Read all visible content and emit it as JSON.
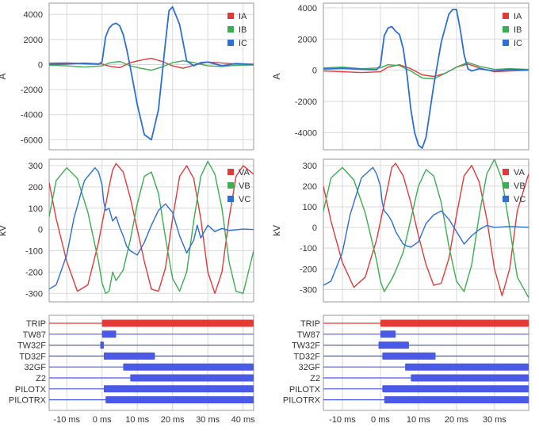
{
  "colors": {
    "IA": "#e03b3b",
    "IB": "#3cae52",
    "IC": "#2d6fd4",
    "VA": "#e03b3b",
    "VB": "#3cae52",
    "VC": "#2d6fd4",
    "trip": "#e53935",
    "bits": "#4a5ae6",
    "frame": "#9a9a9a",
    "grid": "#d9d9d9"
  },
  "chart_data": [
    {
      "type": "line",
      "panel": "left-current",
      "ylabel": "A",
      "ylim": [
        -6800,
        4900
      ],
      "yticks": [
        4000,
        2000,
        0,
        -2000,
        -4000,
        -6000
      ],
      "xlim": [
        -15,
        43
      ],
      "legend": "top-right",
      "series": [
        {
          "name": "IA",
          "x": [
            -15,
            -10,
            -5,
            0,
            2,
            5,
            8,
            11,
            14,
            17,
            20,
            23,
            26,
            30,
            34,
            38,
            43
          ],
          "y": [
            0,
            30,
            120,
            50,
            -120,
            -250,
            150,
            350,
            500,
            250,
            -100,
            -300,
            -50,
            200,
            120,
            50,
            30
          ]
        },
        {
          "name": "IB",
          "x": [
            -15,
            -10,
            -5,
            0,
            2,
            5,
            8,
            11,
            14,
            17,
            20,
            23,
            26,
            30,
            34,
            38,
            43
          ],
          "y": [
            -50,
            -100,
            -200,
            -100,
            120,
            250,
            -100,
            -300,
            -450,
            -200,
            150,
            300,
            150,
            -100,
            -150,
            -60,
            -30
          ]
        },
        {
          "name": "IC",
          "x": [
            -15,
            -10,
            -5,
            -1,
            0,
            1,
            2,
            3,
            4,
            5,
            6,
            7,
            8,
            10,
            12,
            14,
            16,
            18,
            19,
            20,
            22,
            24,
            26,
            28,
            30,
            34,
            38,
            43
          ],
          "y": [
            100,
            120,
            70,
            30,
            200,
            2200,
            2900,
            3200,
            3300,
            3100,
            2400,
            1200,
            -200,
            -3200,
            -5600,
            -6000,
            -3600,
            1800,
            4300,
            4600,
            3200,
            300,
            -100,
            150,
            200,
            -100,
            80,
            0
          ]
        }
      ]
    },
    {
      "type": "line",
      "panel": "left-voltage",
      "ylabel": "kV",
      "ylim": [
        -340,
        330
      ],
      "yticks": [
        300,
        200,
        100,
        0,
        -100,
        -200,
        -300
      ],
      "xlim": [
        -15,
        43
      ],
      "legend": "top-right",
      "series": [
        {
          "name": "VA",
          "x": [
            -15,
            -13,
            -10,
            -7,
            -4,
            -1,
            2,
            3,
            4,
            6,
            8,
            10,
            12,
            14,
            16,
            18,
            20,
            22,
            24,
            26,
            28,
            30,
            32,
            34,
            36,
            38,
            40,
            43
          ],
          "y": [
            220,
            50,
            -150,
            -290,
            -260,
            -60,
            200,
            280,
            310,
            270,
            150,
            0,
            -150,
            -280,
            -290,
            -180,
            50,
            250,
            300,
            240,
            50,
            -200,
            -300,
            -200,
            50,
            250,
            300,
            260
          ]
        },
        {
          "name": "VB",
          "x": [
            -15,
            -13,
            -10,
            -7,
            -4,
            -1,
            0,
            1,
            2,
            3,
            4,
            6,
            8,
            10,
            12,
            14,
            16,
            18,
            20,
            22,
            24,
            26,
            28,
            30,
            32,
            34,
            36,
            38,
            40,
            43
          ],
          "y": [
            60,
            230,
            290,
            240,
            80,
            -150,
            -250,
            -300,
            -290,
            -200,
            -240,
            -190,
            -50,
            120,
            250,
            270,
            170,
            -40,
            -230,
            -290,
            -200,
            40,
            250,
            320,
            260,
            100,
            -150,
            -290,
            -300,
            -100
          ]
        },
        {
          "name": "VC",
          "x": [
            -15,
            -13,
            -10,
            -8,
            -5,
            -2,
            -1,
            0,
            0.5,
            1,
            2,
            3,
            4,
            5,
            6,
            7,
            8,
            10,
            12,
            14,
            16,
            18,
            20,
            22,
            24,
            26,
            27,
            28,
            30,
            32,
            34,
            36,
            40,
            43
          ],
          "y": [
            -280,
            -260,
            -120,
            50,
            230,
            290,
            270,
            210,
            130,
            90,
            100,
            40,
            60,
            10,
            -30,
            -80,
            -100,
            -120,
            -60,
            20,
            90,
            120,
            80,
            -30,
            -110,
            -50,
            20,
            -40,
            20,
            -10,
            5,
            -5,
            2,
            0
          ]
        }
      ]
    },
    {
      "type": "line",
      "panel": "right-current",
      "ylabel": "A",
      "ylim": [
        -5100,
        4300
      ],
      "yticks": [
        4000,
        2000,
        0,
        -2000,
        -4000
      ],
      "xlim": [
        -15,
        39
      ],
      "legend": "top-right",
      "series": [
        {
          "name": "IA",
          "x": [
            -15,
            -10,
            -5,
            0,
            2,
            5,
            8,
            11,
            14,
            17,
            20,
            23,
            26,
            30,
            34,
            39
          ],
          "y": [
            -50,
            -100,
            -150,
            -100,
            200,
            350,
            100,
            -300,
            -400,
            -200,
            200,
            400,
            150,
            -100,
            -50,
            0
          ]
        },
        {
          "name": "IB",
          "x": [
            -15,
            -10,
            -5,
            0,
            2,
            5,
            8,
            11,
            14,
            17,
            20,
            23,
            26,
            30,
            34,
            39
          ],
          "y": [
            150,
            200,
            100,
            150,
            350,
            300,
            -50,
            -500,
            -550,
            -200,
            200,
            500,
            250,
            50,
            100,
            50
          ]
        },
        {
          "name": "IC",
          "x": [
            -15,
            -10,
            -5,
            -1,
            0,
            1,
            2,
            3,
            4,
            5,
            6,
            7,
            8,
            9,
            10,
            11,
            12,
            14,
            16,
            18,
            19,
            20,
            21,
            22,
            23,
            24,
            26,
            30,
            34,
            39
          ],
          "y": [
            80,
            120,
            60,
            30,
            300,
            2200,
            2700,
            2800,
            2500,
            2300,
            1400,
            -300,
            -2500,
            -4000,
            -4800,
            -5000,
            -4300,
            -1000,
            1800,
            3600,
            3900,
            3900,
            2600,
            1000,
            100,
            -50,
            100,
            -50,
            50,
            0
          ]
        }
      ]
    },
    {
      "type": "line",
      "panel": "right-voltage",
      "ylabel": "kV",
      "ylim": [
        -360,
        330
      ],
      "yticks": [
        300,
        200,
        100,
        0,
        -100,
        -200,
        -300
      ],
      "xlim": [
        -15,
        39
      ],
      "legend": "top-right",
      "series": [
        {
          "name": "VA",
          "x": [
            -15,
            -13,
            -10,
            -7,
            -4,
            -1,
            2,
            3,
            4,
            6,
            8,
            10,
            12,
            14,
            16,
            18,
            20,
            22,
            24,
            26,
            28,
            30,
            32,
            34,
            36,
            39
          ],
          "y": [
            200,
            30,
            -170,
            -290,
            -240,
            -60,
            200,
            290,
            310,
            250,
            120,
            -40,
            -180,
            -280,
            -270,
            -150,
            60,
            250,
            300,
            220,
            40,
            -200,
            -330,
            -200,
            80,
            260
          ]
        },
        {
          "name": "VB",
          "x": [
            -15,
            -13,
            -10,
            -7,
            -4,
            -1,
            0,
            1,
            2,
            3,
            4,
            6,
            8,
            10,
            12,
            14,
            16,
            18,
            20,
            22,
            24,
            26,
            28,
            30,
            32,
            34,
            36,
            39
          ],
          "y": [
            80,
            240,
            290,
            230,
            70,
            -160,
            -260,
            -310,
            -280,
            -250,
            -210,
            -120,
            40,
            200,
            280,
            250,
            120,
            -90,
            -260,
            -310,
            -180,
            60,
            260,
            330,
            230,
            0,
            -240,
            -340
          ]
        },
        {
          "name": "VC",
          "x": [
            -15,
            -13,
            -10,
            -8,
            -5,
            -2,
            -1,
            0,
            0.5,
            1,
            2,
            3,
            4,
            5,
            6,
            7,
            8,
            10,
            12,
            14,
            16,
            18,
            20,
            22,
            24,
            26,
            28,
            30,
            34,
            39
          ],
          "y": [
            -280,
            -260,
            -120,
            60,
            240,
            290,
            260,
            200,
            120,
            80,
            60,
            30,
            -20,
            -50,
            -80,
            -90,
            -95,
            -70,
            20,
            60,
            80,
            40,
            -20,
            -80,
            -40,
            -10,
            10,
            0,
            5,
            0
          ]
        }
      ]
    },
    {
      "type": "timeline",
      "panel": "left-digital",
      "xlim": [
        -15,
        43
      ],
      "xticks": [
        -10,
        0,
        10,
        20,
        30,
        40
      ],
      "tick_labels": [
        "-10 ms",
        "0 ms",
        "10 ms",
        "20 ms",
        "30 ms",
        "40 ms"
      ],
      "channels": [
        {
          "name": "TRIP",
          "on": [
            [
              0,
              43
            ]
          ]
        },
        {
          "name": "TW87",
          "on": [
            [
              0,
              4
            ]
          ]
        },
        {
          "name": "TW32F",
          "on": [
            [
              -0.5,
              0.5
            ]
          ]
        },
        {
          "name": "TD32F",
          "on": [
            [
              0.5,
              15
            ]
          ]
        },
        {
          "name": "32GF",
          "on": [
            [
              6,
              43
            ]
          ]
        },
        {
          "name": "Z2",
          "on": [
            [
              8,
              43
            ]
          ]
        },
        {
          "name": "PILOTX",
          "on": [
            [
              0.5,
              43
            ]
          ]
        },
        {
          "name": "PILOTRX",
          "on": [
            [
              1,
              43
            ]
          ]
        }
      ]
    },
    {
      "type": "timeline",
      "panel": "right-digital",
      "xlim": [
        -15,
        39
      ],
      "xticks": [
        -10,
        0,
        10,
        20,
        30
      ],
      "tick_labels": [
        "-10 ms",
        "0 ms",
        "10 ms",
        "20 ms",
        "30 ms"
      ],
      "channels": [
        {
          "name": "TRIP",
          "on": [
            [
              0,
              39
            ]
          ]
        },
        {
          "name": "TW87",
          "on": [
            [
              0,
              4
            ]
          ]
        },
        {
          "name": "TW32F",
          "on": [
            [
              -0.5,
              7.5
            ]
          ]
        },
        {
          "name": "TD32F",
          "on": [
            [
              0.5,
              14.5
            ]
          ]
        },
        {
          "name": "32GF",
          "on": [
            [
              6.5,
              39
            ]
          ]
        },
        {
          "name": "Z2",
          "on": [
            [
              8,
              39
            ]
          ]
        },
        {
          "name": "PILOTX",
          "on": [
            [
              0.5,
              39
            ]
          ]
        },
        {
          "name": "PILOTRX",
          "on": [
            [
              1,
              39
            ]
          ]
        }
      ]
    }
  ]
}
